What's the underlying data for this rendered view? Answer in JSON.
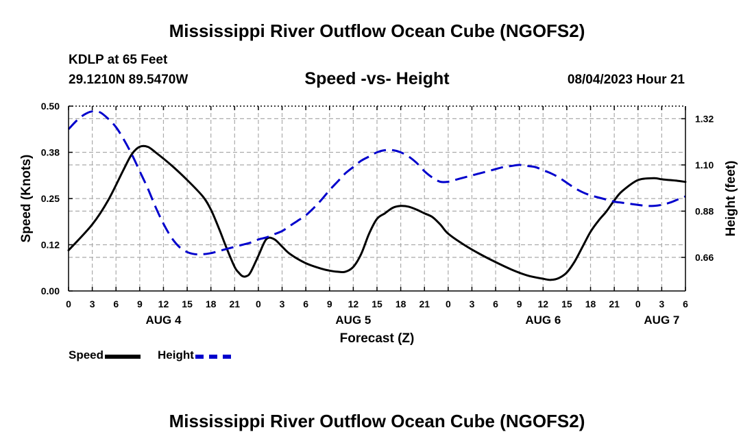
{
  "header": {
    "title": "Mississippi River Outflow Ocean Cube (NGOFS2)",
    "station_name": "KDLP at 65 Feet",
    "station_coords": "29.1210N  89.5470W",
    "chart_title": "Speed -vs- Height",
    "run_time": "08/04/2023 Hour 21"
  },
  "footer": {
    "title": "Mississippi River Outflow Ocean Cube (NGOFS2)"
  },
  "legend": {
    "speed_label": "Speed",
    "height_label": "Height"
  },
  "colors": {
    "speed": "#000000",
    "height": "#0000cc",
    "grid": "#aaaaaa"
  },
  "chart_data": {
    "type": "line",
    "title": "Speed -vs- Height",
    "xlabel": "Forecast (Z)",
    "ylabel": "Speed (Knots)",
    "y2label": "Height (feet)",
    "xlim": [
      0,
      78
    ],
    "ylim": [
      0,
      0.5
    ],
    "y2lim": [
      0.5,
      1.38
    ],
    "grid": true,
    "x_ticks": [
      0,
      3,
      6,
      9,
      12,
      15,
      18,
      21,
      24,
      27,
      30,
      33,
      36,
      39,
      42,
      45,
      48,
      51,
      54,
      57,
      60,
      63,
      66,
      69,
      72,
      75,
      78
    ],
    "x_tick_labels": [
      "0",
      "3",
      "6",
      "9",
      "12",
      "15",
      "18",
      "21",
      "0",
      "3",
      "6",
      "9",
      "12",
      "15",
      "18",
      "21",
      "0",
      "3",
      "6",
      "9",
      "12",
      "15",
      "18",
      "21",
      "0",
      "3",
      "6"
    ],
    "y_ticks": [
      0,
      0.125,
      0.25,
      0.375,
      0.5
    ],
    "y_tick_labels": [
      "0.00",
      "0.12",
      "0.25",
      "0.38",
      "0.50"
    ],
    "y2_ticks": [
      0.66,
      0.88,
      1.1,
      1.32
    ],
    "y2_tick_labels": [
      "0.66",
      "0.88",
      "1.10",
      "1.32"
    ],
    "date_labels": [
      {
        "x": 12,
        "label": "AUG 4"
      },
      {
        "x": 36,
        "label": "AUG 5"
      },
      {
        "x": 60,
        "label": "AUG 6"
      },
      {
        "x": 75,
        "label": "AUG 7"
      }
    ],
    "series": [
      {
        "name": "Speed",
        "axis": "left",
        "style": "solid",
        "x": [
          0,
          3,
          5,
          7,
          8,
          9,
          10,
          11,
          13,
          15,
          17,
          18,
          19,
          20,
          21,
          21.5,
          22,
          22.5,
          23,
          24,
          25,
          26,
          27,
          28,
          30,
          32,
          33,
          34,
          35,
          36,
          37,
          38,
          39,
          40,
          41,
          42,
          43,
          44,
          45,
          46,
          47,
          48,
          50,
          52,
          54,
          56,
          58,
          60,
          61,
          62,
          63,
          64,
          65,
          66,
          67,
          68,
          69,
          70,
          72,
          74,
          75,
          76,
          77,
          78
        ],
        "y": [
          0.11,
          0.18,
          0.245,
          0.33,
          0.37,
          0.39,
          0.39,
          0.375,
          0.34,
          0.3,
          0.255,
          0.22,
          0.17,
          0.115,
          0.065,
          0.05,
          0.04,
          0.04,
          0.05,
          0.095,
          0.14,
          0.14,
          0.12,
          0.1,
          0.075,
          0.06,
          0.055,
          0.052,
          0.052,
          0.065,
          0.1,
          0.155,
          0.195,
          0.21,
          0.225,
          0.23,
          0.228,
          0.22,
          0.21,
          0.2,
          0.18,
          0.155,
          0.125,
          0.1,
          0.078,
          0.058,
          0.042,
          0.033,
          0.03,
          0.035,
          0.05,
          0.08,
          0.12,
          0.16,
          0.19,
          0.215,
          0.245,
          0.27,
          0.3,
          0.305,
          0.302,
          0.3,
          0.298,
          0.295
        ]
      },
      {
        "name": "Height",
        "axis": "right",
        "style": "dashed",
        "x": [
          0,
          1,
          2,
          3,
          4,
          5,
          6,
          7,
          8,
          9,
          10,
          11,
          12,
          13,
          14,
          15,
          16,
          17,
          18,
          19,
          20,
          21,
          22,
          23,
          24,
          25,
          26,
          27,
          28,
          29,
          30,
          31,
          32,
          33,
          34,
          35,
          36,
          37,
          38,
          39,
          40,
          41,
          42,
          43,
          44,
          45,
          46,
          47,
          48,
          49,
          50,
          51,
          52,
          53,
          54,
          55,
          56,
          57,
          58,
          59,
          60,
          61,
          62,
          63,
          64,
          65,
          66,
          67,
          68,
          69,
          70,
          71,
          72,
          73,
          74,
          75,
          76,
          77,
          78
        ],
        "y": [
          1.27,
          1.31,
          1.34,
          1.355,
          1.35,
          1.32,
          1.28,
          1.22,
          1.15,
          1.07,
          0.99,
          0.9,
          0.82,
          0.755,
          0.71,
          0.685,
          0.675,
          0.675,
          0.68,
          0.69,
          0.7,
          0.71,
          0.72,
          0.73,
          0.745,
          0.755,
          0.77,
          0.785,
          0.81,
          0.835,
          0.86,
          0.895,
          0.935,
          0.98,
          1.02,
          1.06,
          1.09,
          1.12,
          1.14,
          1.16,
          1.17,
          1.17,
          1.16,
          1.14,
          1.11,
          1.07,
          1.04,
          1.02,
          1.02,
          1.03,
          1.04,
          1.05,
          1.06,
          1.07,
          1.08,
          1.09,
          1.095,
          1.1,
          1.095,
          1.09,
          1.075,
          1.06,
          1.04,
          1.015,
          0.99,
          0.97,
          0.955,
          0.945,
          0.935,
          0.925,
          0.92,
          0.915,
          0.91,
          0.905,
          0.905,
          0.91,
          0.92,
          0.935,
          0.95
        ]
      }
    ]
  }
}
